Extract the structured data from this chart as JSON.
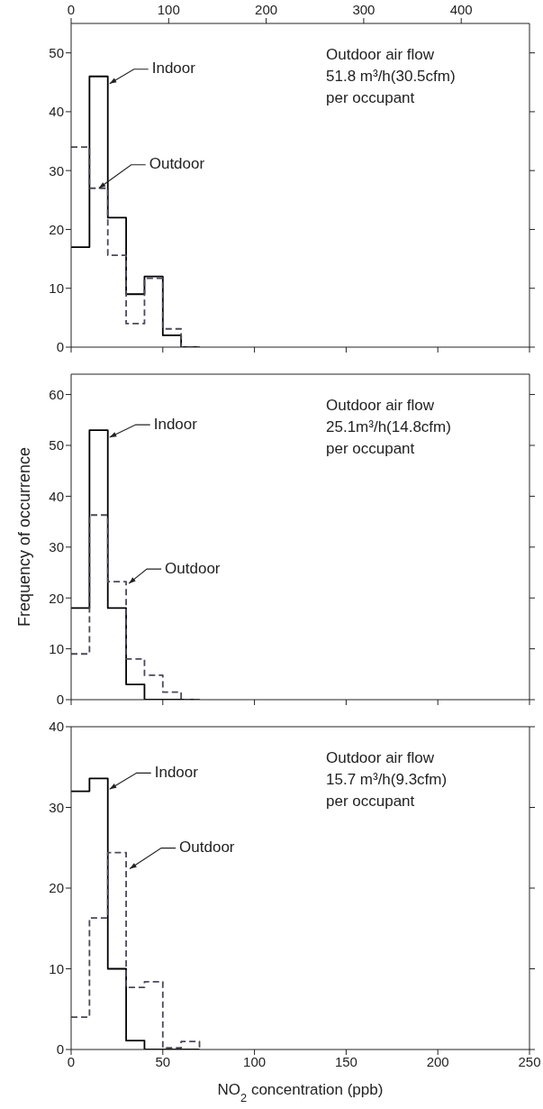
{
  "chart_data": [
    {
      "type": "histogram",
      "bins": [
        0,
        10,
        20,
        30,
        40,
        50,
        60,
        70
      ],
      "xlim": [
        0,
        250
      ],
      "xticks": [
        0,
        50,
        100,
        150,
        200,
        250
      ],
      "x2lim": [
        0,
        470
      ],
      "x2ticks": [
        0,
        100,
        200,
        300,
        400
      ],
      "ylim": [
        0,
        55
      ],
      "yticks": [
        0,
        10,
        20,
        30,
        40,
        50
      ],
      "tick_labels": "y",
      "legend": false,
      "grid": false,
      "series": [
        {
          "name": "Indoor",
          "color": "#000000",
          "line_style": "solid",
          "values": [
            17,
            46,
            22,
            9,
            12,
            2,
            0
          ]
        },
        {
          "name": "Outdoor",
          "color": "#4a4a5a",
          "line_style": "dashed",
          "values": [
            34,
            27,
            15.6,
            4,
            11.7,
            3.1,
            0
          ]
        }
      ],
      "annotations": [
        "Outdoor air flow\n51.8 m³/h(30.5cfm)\nper occupant"
      ]
    },
    {
      "type": "histogram",
      "bins": [
        0,
        10,
        20,
        30,
        40,
        50,
        60,
        70
      ],
      "xlim": [
        0,
        250
      ],
      "xticks": [
        0,
        50,
        100,
        150,
        200,
        250
      ],
      "ylim": [
        0,
        64
      ],
      "yticks": [
        0,
        10,
        20,
        30,
        40,
        50,
        60
      ],
      "tick_labels": "y",
      "legend": false,
      "grid": false,
      "ylabel": "Frequency of occurrence",
      "series": [
        {
          "name": "Indoor",
          "color": "#000000",
          "line_style": "solid",
          "values": [
            18,
            53,
            18,
            3,
            0,
            0,
            0
          ]
        },
        {
          "name": "Outdoor",
          "color": "#4a4a5a",
          "line_style": "dashed",
          "values": [
            9,
            36.3,
            23.2,
            8,
            4.8,
            1.5,
            0
          ]
        }
      ],
      "annotations": [
        "Outdoor air flow\n25.1m³/h(14.8cfm)\nper occupant"
      ]
    },
    {
      "type": "histogram",
      "bins": [
        0,
        10,
        20,
        30,
        40,
        50,
        60,
        70
      ],
      "xlim": [
        0,
        250
      ],
      "xticks": [
        0,
        50,
        100,
        150,
        200,
        250
      ],
      "ylim": [
        0,
        40
      ],
      "yticks": [
        0,
        10,
        20,
        30,
        40
      ],
      "legend": false,
      "grid": false,
      "xlabel": "NO$_{2}$ concentration (ppb)",
      "series": [
        {
          "name": "Indoor",
          "color": "#000000",
          "line_style": "solid",
          "values": [
            32,
            33.6,
            10,
            1.1,
            0,
            0,
            0
          ]
        },
        {
          "name": "Outdoor",
          "color": "#4a4a5a",
          "line_style": "dashed",
          "values": [
            4,
            16.3,
            24.4,
            7.7,
            8.4,
            0.2,
            1
          ]
        }
      ],
      "annotations": [
        "Outdoor air flow\n15.7 m³/h(9.3cfm)\nper occupant"
      ]
    }
  ]
}
